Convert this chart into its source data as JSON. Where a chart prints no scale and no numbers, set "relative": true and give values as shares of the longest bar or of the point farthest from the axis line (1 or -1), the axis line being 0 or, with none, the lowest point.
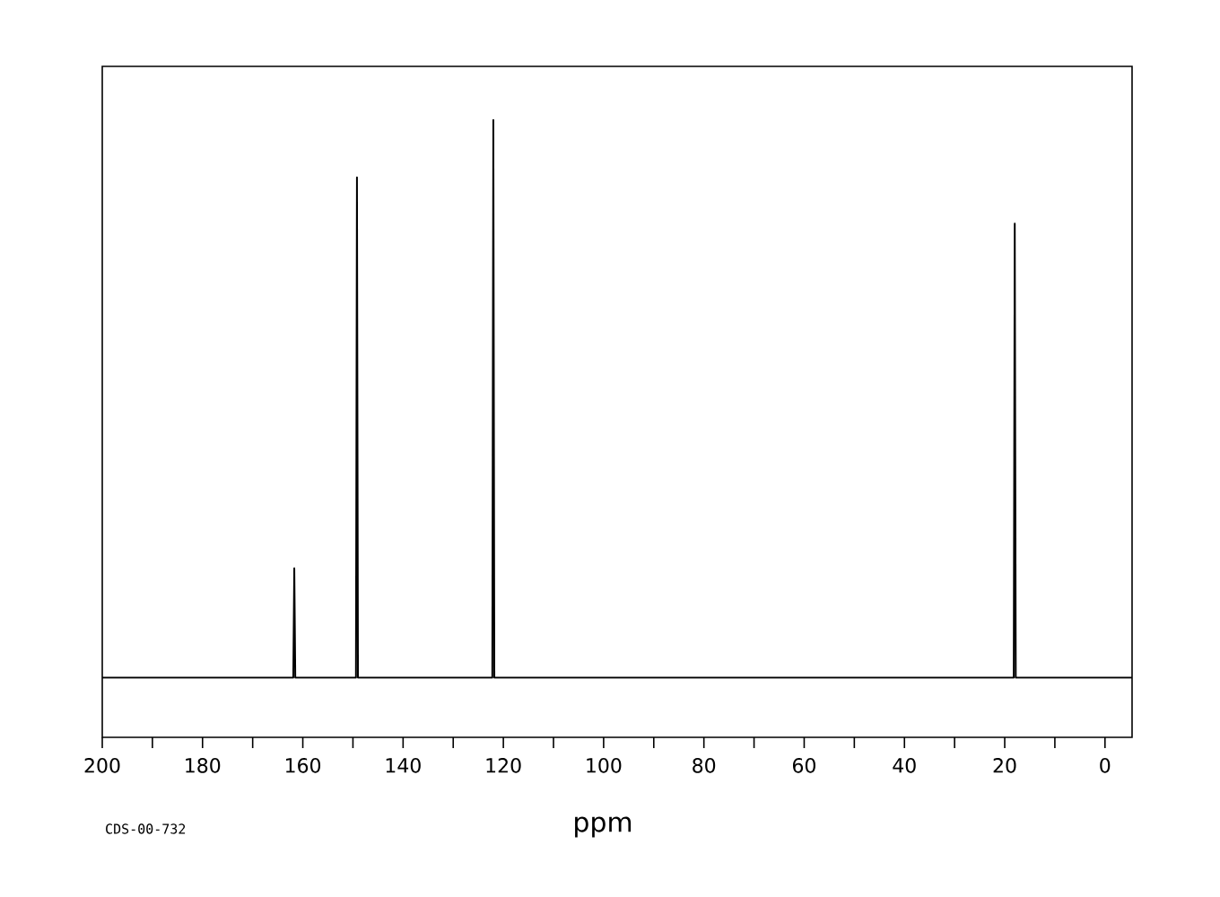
{
  "chart_data": {
    "type": "line",
    "relative": true,
    "xlabel": "ppm",
    "annotations": [
      "CDS-00-732"
    ],
    "xlim": [
      200,
      -5.4
    ],
    "xticks": [
      200,
      180,
      160,
      140,
      120,
      100,
      80,
      60,
      40,
      20,
      0
    ],
    "x": [
      200,
      161.9,
      161.7,
      161.5,
      149.4,
      149.2,
      149.0,
      122.2,
      122.0,
      121.8,
      18.2,
      18.0,
      17.8,
      -5.4
    ],
    "series": [
      {
        "color": "#000000",
        "values": [
          0,
          0,
          0.196,
          0,
          0,
          0.897,
          0,
          0,
          1,
          0,
          0,
          0.814,
          0,
          0
        ]
      }
    ],
    "grid": false,
    "marker": "none",
    "line_style": "solid"
  }
}
